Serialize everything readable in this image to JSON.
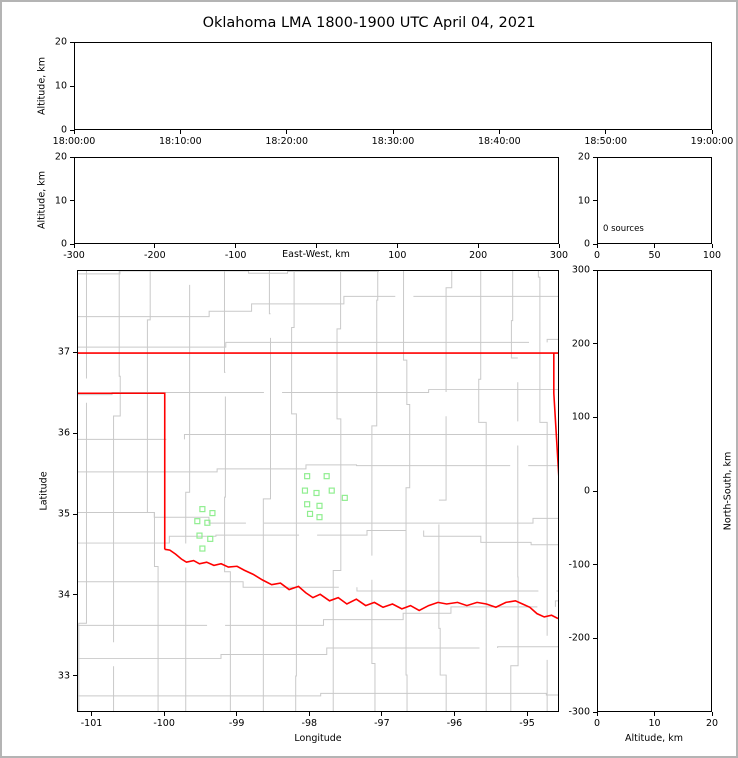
{
  "title": "Oklahoma LMA 1800-1900 UTC April 04, 2021",
  "colors": {
    "state_border": "#ff0000",
    "county_lines": "#c9c9c9",
    "stations": "#90ee90",
    "axes": "#000000",
    "frame": "#b4b4b4"
  },
  "panels": {
    "time_height": {
      "ylabel": "Altitude, km",
      "ylim": [
        0,
        20
      ],
      "yticks": [
        0,
        10,
        20
      ],
      "xtick_labels": [
        "18:00:00",
        "18:10:00",
        "18:20:00",
        "18:30:00",
        "18:40:00",
        "18:50:00",
        "19:00:00"
      ]
    },
    "ew_height": {
      "ylabel": "Altitude, km",
      "xlabel": "East-West, km",
      "ylim": [
        0,
        20
      ],
      "yticks": [
        0,
        10,
        20
      ],
      "xlim": [
        -300,
        300
      ],
      "xticks": [
        -300,
        -200,
        -100,
        0,
        100,
        200,
        300
      ],
      "hide_zero_xlabel": true
    },
    "alt_histogram": {
      "annotation": "0 sources",
      "ylim": [
        0,
        20
      ],
      "yticks": [
        0,
        10,
        20
      ],
      "xlim": [
        0,
        100
      ],
      "xticks": [
        0,
        50,
        100
      ]
    },
    "map": {
      "xlabel": "Longitude",
      "ylabel": "Latitude",
      "xlim": [
        -101.2,
        -94.56
      ],
      "ylim": [
        32.55,
        38.02
      ],
      "xticks": [
        -101,
        -100,
        -99,
        -98,
        -97,
        -96,
        -95
      ],
      "yticks": [
        33,
        34,
        35,
        36,
        37
      ]
    },
    "ns_height": {
      "xlabel": "Altitude, km",
      "ylabel_right": "North-South, km",
      "xlim": [
        0,
        20
      ],
      "xticks": [
        0,
        10,
        20
      ],
      "ylim": [
        -300,
        300
      ],
      "yticks": [
        -300,
        -200,
        -100,
        0,
        100,
        200,
        300
      ]
    }
  },
  "chart_data": {
    "type": "scatter",
    "title": "Oklahoma LMA 1800-1900 UTC April 04, 2021",
    "source_count": 0,
    "lma_stations_lon_lat": [
      [
        -98.03,
        35.47
      ],
      [
        -97.76,
        35.47
      ],
      [
        -98.06,
        35.29
      ],
      [
        -97.9,
        35.26
      ],
      [
        -97.69,
        35.29
      ],
      [
        -97.51,
        35.2
      ],
      [
        -98.03,
        35.12
      ],
      [
        -97.86,
        35.1
      ],
      [
        -97.99,
        35.0
      ],
      [
        -97.86,
        34.96
      ],
      [
        -99.48,
        35.06
      ],
      [
        -99.34,
        35.01
      ],
      [
        -99.55,
        34.91
      ],
      [
        -99.41,
        34.89
      ],
      [
        -99.52,
        34.73
      ],
      [
        -99.37,
        34.69
      ],
      [
        -99.48,
        34.57
      ]
    ],
    "state_border_segments_lon_lat": [
      [
        [
          -101.2,
          37.0
        ],
        [
          -94.56,
          37.0
        ]
      ],
      [
        [
          -101.2,
          36.5
        ],
        [
          -100.0,
          36.5
        ],
        [
          -100.0,
          34.56
        ]
      ],
      [
        [
          -94.618,
          37.0
        ],
        [
          -94.618,
          36.5
        ],
        [
          -94.43,
          33.7
        ]
      ],
      [
        [
          -100.0,
          34.56
        ],
        [
          -99.93,
          34.55
        ],
        [
          -99.85,
          34.5
        ],
        [
          -99.77,
          34.44
        ],
        [
          -99.7,
          34.4
        ],
        [
          -99.6,
          34.42
        ],
        [
          -99.52,
          34.38
        ],
        [
          -99.42,
          34.4
        ],
        [
          -99.32,
          34.36
        ],
        [
          -99.22,
          34.38
        ],
        [
          -99.12,
          34.34
        ],
        [
          -99.0,
          34.35
        ],
        [
          -98.9,
          34.3
        ],
        [
          -98.78,
          34.25
        ],
        [
          -98.65,
          34.18
        ],
        [
          -98.52,
          34.12
        ],
        [
          -98.4,
          34.14
        ],
        [
          -98.28,
          34.06
        ],
        [
          -98.15,
          34.1
        ],
        [
          -98.05,
          34.02
        ],
        [
          -97.95,
          33.96
        ],
        [
          -97.85,
          34.0
        ],
        [
          -97.72,
          33.92
        ],
        [
          -97.6,
          33.96
        ],
        [
          -97.48,
          33.88
        ],
        [
          -97.35,
          33.94
        ],
        [
          -97.22,
          33.86
        ],
        [
          -97.1,
          33.9
        ],
        [
          -96.98,
          33.84
        ],
        [
          -96.85,
          33.88
        ],
        [
          -96.72,
          33.82
        ],
        [
          -96.6,
          33.86
        ],
        [
          -96.48,
          33.8
        ],
        [
          -96.35,
          33.86
        ],
        [
          -96.22,
          33.9
        ],
        [
          -96.1,
          33.88
        ],
        [
          -95.95,
          33.9
        ],
        [
          -95.82,
          33.86
        ],
        [
          -95.68,
          33.9
        ],
        [
          -95.55,
          33.88
        ],
        [
          -95.42,
          33.84
        ],
        [
          -95.28,
          33.9
        ],
        [
          -95.15,
          33.92
        ],
        [
          -95.05,
          33.88
        ],
        [
          -94.95,
          33.84
        ],
        [
          -94.85,
          33.76
        ],
        [
          -94.75,
          33.72
        ],
        [
          -94.65,
          33.74
        ],
        [
          -94.56,
          33.7
        ]
      ]
    ]
  }
}
